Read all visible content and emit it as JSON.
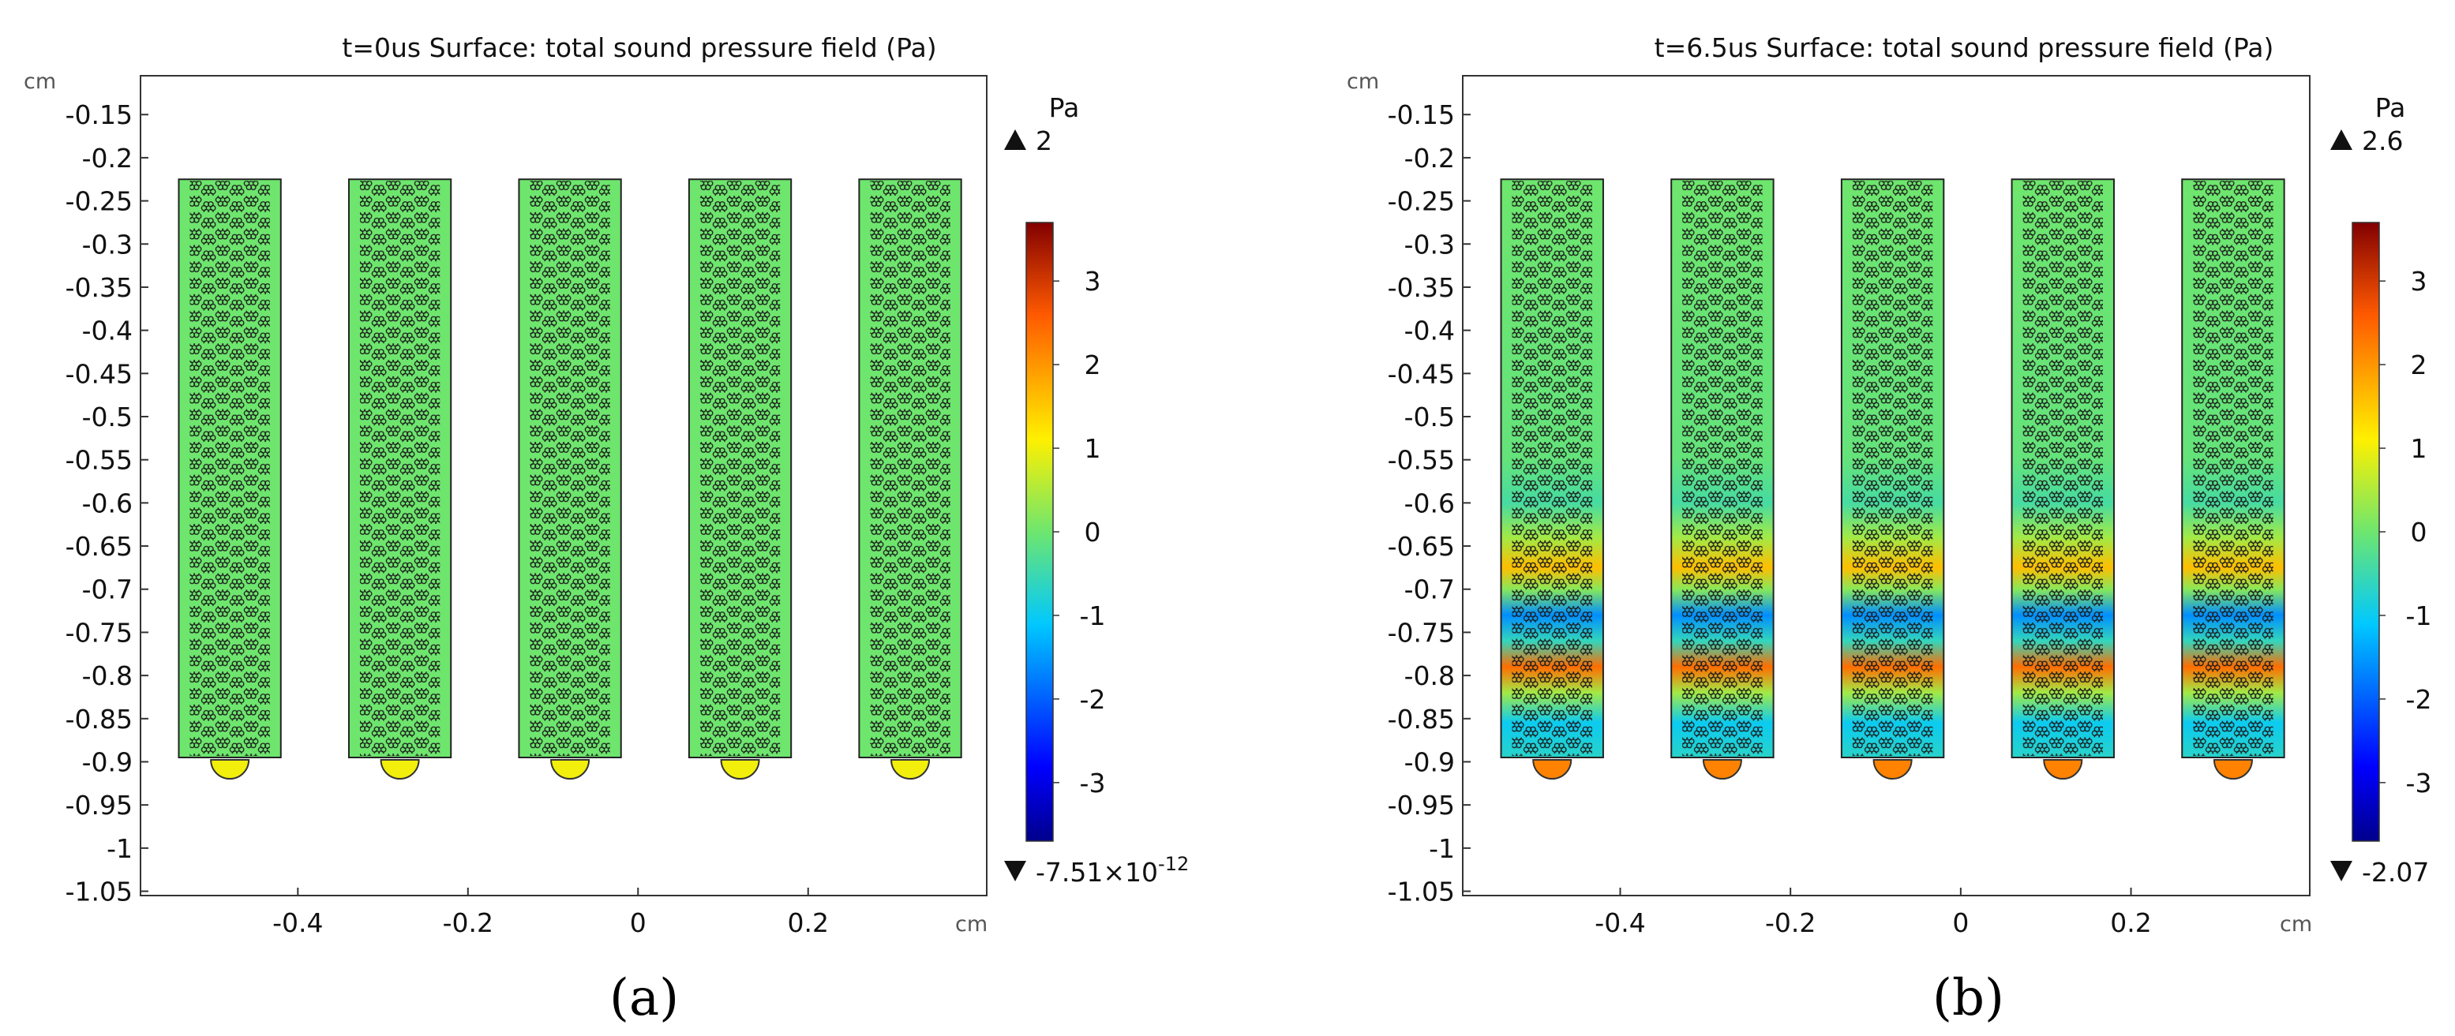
{
  "chart_data": [
    {
      "type": "heatmap",
      "panel_label": "(a)",
      "title": "t=0us   Surface: total sound pressure field (Pa)",
      "xlabel": "cm",
      "ylabel": "cm",
      "xlim": [
        -0.585,
        0.41
      ],
      "ylim": [
        -1.055,
        -0.105
      ],
      "x_ticks": [
        -0.4,
        -0.2,
        0,
        0.2
      ],
      "x_tick_labels": [
        "-0.4",
        "-0.2",
        "0",
        "0.2"
      ],
      "y_ticks": [
        -0.15,
        -0.2,
        -0.25,
        -0.3,
        -0.35,
        -0.4,
        -0.45,
        -0.5,
        -0.55,
        -0.6,
        -0.65,
        -0.7,
        -0.75,
        -0.8,
        -0.85,
        -0.9,
        -0.95,
        -1,
        -1.05
      ],
      "y_tick_labels": [
        "-0.15",
        "-0.2",
        "-0.25",
        "-0.3",
        "-0.35",
        "-0.4",
        "-0.45",
        "-0.5",
        "-0.55",
        "-0.6",
        "-0.65",
        "-0.7",
        "-0.75",
        "-0.8",
        "-0.85",
        "-0.9",
        "-0.95",
        "-1",
        "-1.05"
      ],
      "strip_centers": [
        -0.48,
        -0.28,
        -0.08,
        0.12,
        0.32
      ],
      "strip_half_width": 0.06,
      "strip_y_range": [
        -0.895,
        -0.225
      ],
      "field_pattern": "uniform",
      "transducer_value": 1.0,
      "colorbar": {
        "unit": "Pa",
        "max_marker": "2",
        "min_marker": "-7.51×10",
        "min_marker_exponent": "-12",
        "range": [
          -3.7,
          3.7
        ],
        "ticks": [
          3,
          2,
          1,
          0,
          -1,
          -2,
          -3
        ],
        "tick_labels": [
          "3",
          "2",
          "1",
          "0",
          "-1",
          "-2",
          "-3"
        ]
      }
    },
    {
      "type": "heatmap",
      "panel_label": "(b)",
      "title": "t=6.5us Surface: total sound pressure field (Pa)",
      "xlabel": "cm",
      "ylabel": "cm",
      "xlim": [
        -0.585,
        0.41
      ],
      "ylim": [
        -1.055,
        -0.105
      ],
      "x_ticks": [
        -0.4,
        -0.2,
        0,
        0.2
      ],
      "x_tick_labels": [
        "-0.4",
        "-0.2",
        "0",
        "0.2"
      ],
      "y_ticks": [
        -0.15,
        -0.2,
        -0.25,
        -0.3,
        -0.35,
        -0.4,
        -0.45,
        -0.5,
        -0.55,
        -0.6,
        -0.65,
        -0.7,
        -0.75,
        -0.8,
        -0.85,
        -0.9,
        -0.95,
        -1,
        -1.05
      ],
      "y_tick_labels": [
        "-0.15",
        "-0.2",
        "-0.25",
        "-0.3",
        "-0.35",
        "-0.4",
        "-0.45",
        "-0.5",
        "-0.55",
        "-0.6",
        "-0.65",
        "-0.7",
        "-0.75",
        "-0.8",
        "-0.85",
        "-0.9",
        "-0.95",
        "-1",
        "-1.05"
      ],
      "strip_centers": [
        -0.48,
        -0.28,
        -0.08,
        0.12,
        0.32
      ],
      "strip_half_width": 0.06,
      "strip_y_range": [
        -0.895,
        -0.225
      ],
      "field_pattern": "standing-wave",
      "field_profile": [
        {
          "y": -0.225,
          "p": 0.0
        },
        {
          "y": -0.55,
          "p": -0.1
        },
        {
          "y": -0.6,
          "p": -0.4
        },
        {
          "y": -0.64,
          "p": 0.4
        },
        {
          "y": -0.675,
          "p": 1.6
        },
        {
          "y": -0.7,
          "p": 0.2
        },
        {
          "y": -0.73,
          "p": -1.6
        },
        {
          "y": -0.76,
          "p": -0.6
        },
        {
          "y": -0.79,
          "p": 2.4
        },
        {
          "y": -0.82,
          "p": 0.4
        },
        {
          "y": -0.855,
          "p": -1.0
        },
        {
          "y": -0.895,
          "p": -0.7
        }
      ],
      "transducer_value": 2.2,
      "colorbar": {
        "unit": "Pa",
        "max_marker": "2.6",
        "min_marker": "-2.07",
        "min_marker_exponent": "",
        "range": [
          -3.7,
          3.7
        ],
        "ticks": [
          3,
          2,
          1,
          0,
          -1,
          -2,
          -3
        ],
        "tick_labels": [
          "3",
          "2",
          "1",
          "0",
          "-1",
          "-2",
          "-3"
        ]
      }
    }
  ]
}
